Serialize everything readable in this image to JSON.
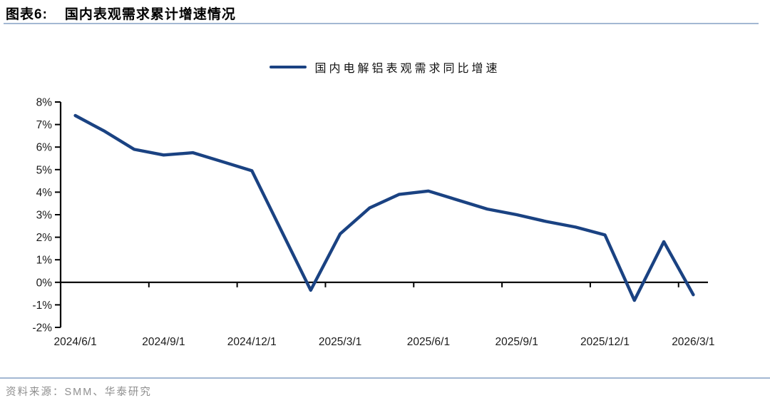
{
  "header": {
    "figure_label": "图表6:",
    "figure_title": "国内表观需求累计增速情况",
    "rule_color": "#A3B8D3"
  },
  "chart_data": {
    "type": "line",
    "title": "国内表观需求累计增速情况",
    "legend_position": "top-center",
    "grid": false,
    "axis_color": "#000000",
    "ylim": [
      -2,
      8
    ],
    "ytick_step": 1,
    "ytick_labels": [
      "8%",
      "7%",
      "6%",
      "5%",
      "4%",
      "3%",
      "2%",
      "1%",
      "0%",
      "-1%",
      "-2%"
    ],
    "y_unit": "%",
    "x_tick_labels": [
      "2024/6/1",
      "2024/9/1",
      "2024/12/1",
      "2025/3/1",
      "2025/6/1",
      "2025/9/1",
      "2025/12/1",
      "2026/3/1"
    ],
    "x_months": [
      "2024/6",
      "2024/7",
      "2024/8",
      "2024/9",
      "2024/10",
      "2024/11",
      "2024/12",
      "2025/1",
      "2025/2",
      "2025/3",
      "2025/4",
      "2025/5",
      "2025/6",
      "2025/7",
      "2025/8",
      "2025/9",
      "2025/10",
      "2025/11",
      "2025/12",
      "2026/1",
      "2026/2",
      "2026/3"
    ],
    "series": [
      {
        "name": "国内电解铝表观需求同比增速",
        "color": "#1A4282",
        "values_pct": [
          7.4,
          6.7,
          5.9,
          5.65,
          5.75,
          5.35,
          4.95,
          2.3,
          -0.35,
          2.15,
          3.3,
          3.9,
          4.05,
          3.65,
          3.25,
          3.0,
          2.7,
          2.45,
          2.1,
          -0.8,
          1.8,
          -0.55
        ]
      }
    ]
  },
  "footer": {
    "rule_color": "#A3B8D3",
    "source_label": "资料来源：SMM、华泰研究"
  }
}
